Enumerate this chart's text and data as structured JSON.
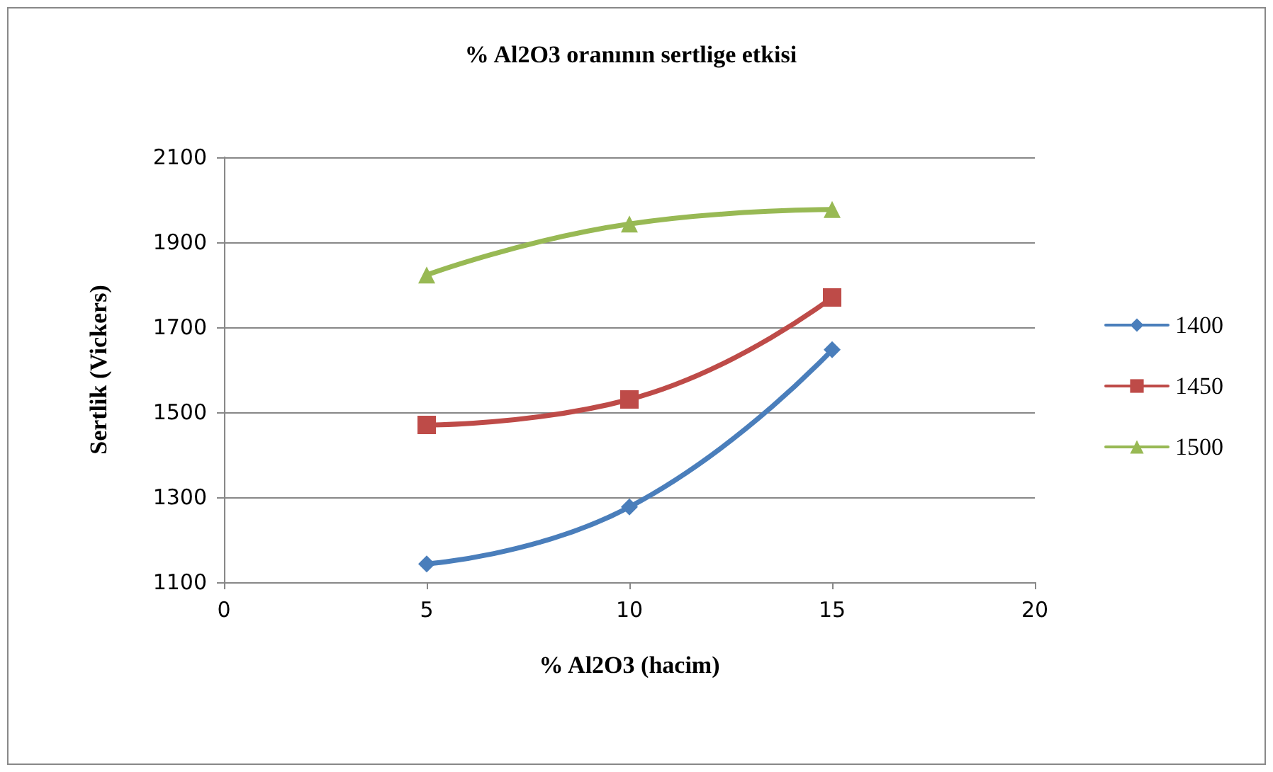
{
  "chart_data": {
    "type": "line",
    "title": "% Al2O3 oranının sertlige etkisi",
    "xlabel": "% Al2O3 (hacim)",
    "ylabel": "Sertlik (Vickers)",
    "x": [
      5,
      10,
      15
    ],
    "series": [
      {
        "name": "1400",
        "color": "#4a7ebb",
        "marker": "diamond",
        "values": [
          1143,
          1277,
          1647
        ]
      },
      {
        "name": "1450",
        "color": "#be4b48",
        "marker": "square",
        "values": [
          1470,
          1530,
          1770
        ]
      },
      {
        "name": "1500",
        "color": "#98b954",
        "marker": "triangle",
        "values": [
          1823,
          1943,
          1977
        ]
      }
    ],
    "xlim": [
      0,
      20
    ],
    "xticks": [
      0,
      5,
      10,
      15,
      20
    ],
    "ylim": [
      1100,
      2100
    ],
    "yticks": [
      1100,
      1300,
      1500,
      1700,
      1900,
      2100
    ],
    "grid": "y",
    "legend": "right",
    "line_style": "solid"
  }
}
